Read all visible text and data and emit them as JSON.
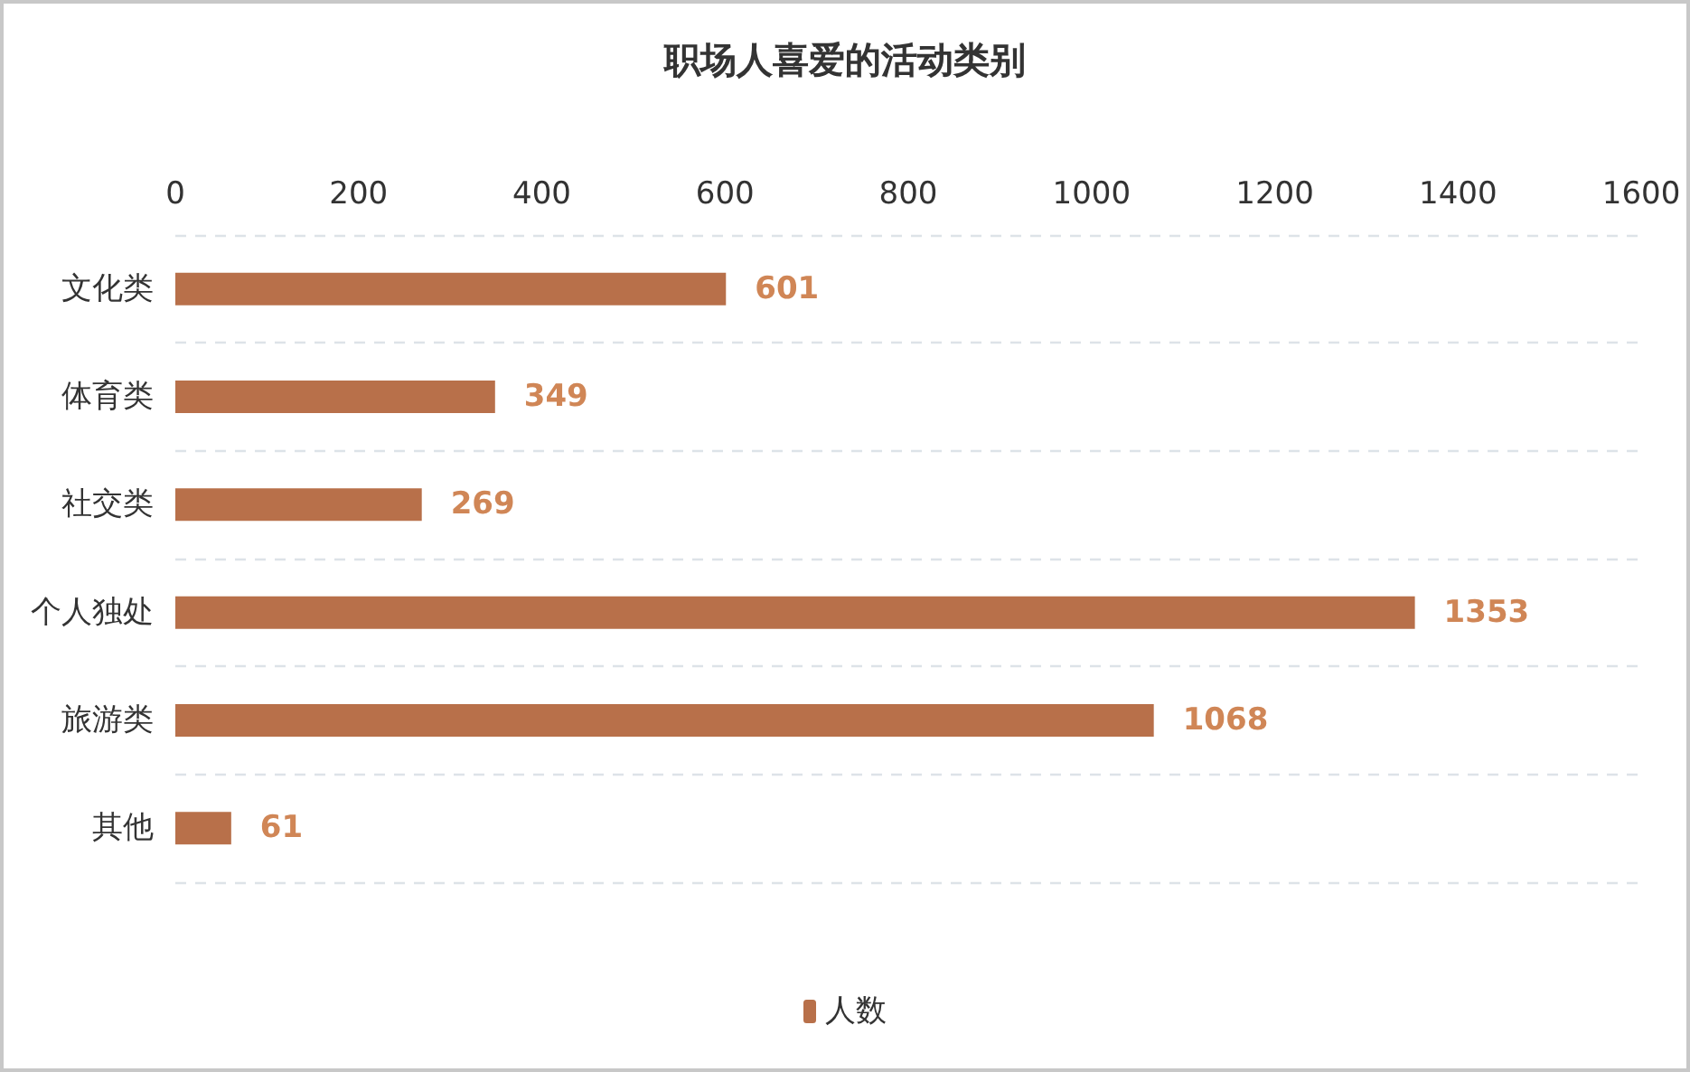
{
  "chart_data": {
    "type": "bar",
    "title": "职场人喜爱的活动类别",
    "orientation": "horizontal",
    "categories": [
      "文化类",
      "体育类",
      "社交类",
      "个人独处",
      "旅游类",
      "其他"
    ],
    "series": [
      {
        "name": "人数",
        "color": "#b8704a",
        "values": [
          601,
          349,
          269,
          1353,
          1068,
          61
        ]
      }
    ],
    "xlim": [
      0,
      1600
    ],
    "xticks": [
      0,
      200,
      400,
      600,
      800,
      1000,
      1200,
      1400,
      1600
    ],
    "data_labels": true,
    "grid": "y",
    "legend": "bottom"
  }
}
